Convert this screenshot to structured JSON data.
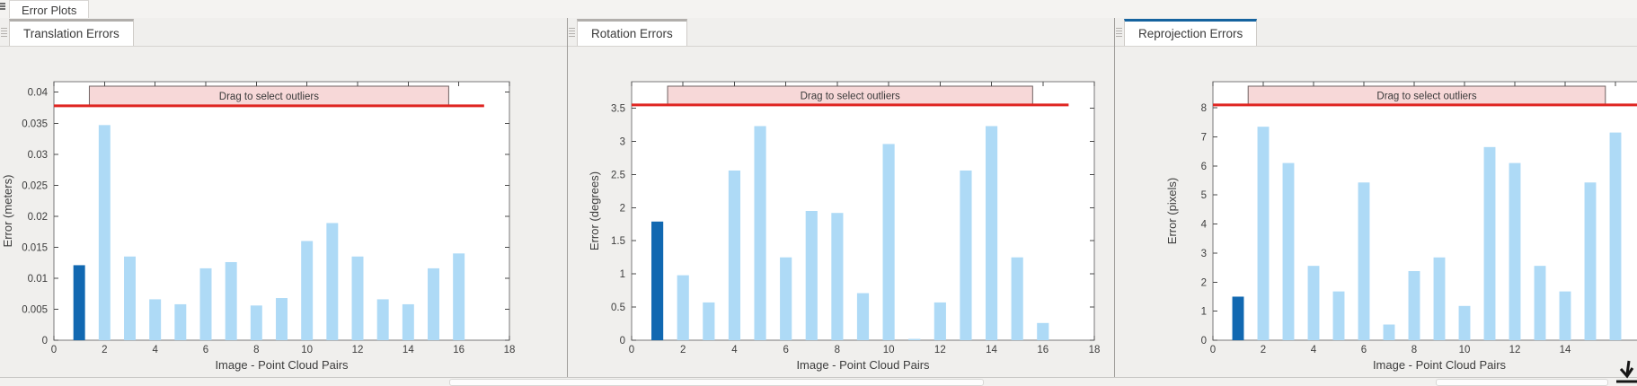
{
  "window": {
    "top_tab_label": "Error Plots",
    "bottom_scrollbar": true
  },
  "panels": [
    {
      "tab": "Translation Errors",
      "active": false
    },
    {
      "tab": "Rotation Errors",
      "active": false
    },
    {
      "tab": "Reprojection Errors",
      "active": true
    }
  ],
  "chart_data": [
    {
      "type": "bar",
      "title": "Translation Errors",
      "xlabel": "Image - Point Cloud Pairs",
      "ylabel": "Error (meters)",
      "x": [
        1,
        2,
        3,
        4,
        5,
        6,
        7,
        8,
        9,
        10,
        11,
        12,
        13,
        14,
        15,
        16
      ],
      "values": [
        0.0121,
        0.0347,
        0.0135,
        0.0066,
        0.0058,
        0.0116,
        0.0126,
        0.0056,
        0.0068,
        0.016,
        0.0189,
        0.0135,
        0.0066,
        0.0058,
        0.0116,
        0.014
      ],
      "selected_index": 0,
      "xlim": [
        0,
        18
      ],
      "ylim": [
        0,
        0.0417
      ],
      "xticks": [
        0,
        2,
        4,
        6,
        8,
        10,
        12,
        14,
        16,
        18
      ],
      "xtick_labels": [
        "0",
        "2",
        "4",
        "6",
        "8",
        "10",
        "12",
        "14",
        "16",
        "18"
      ],
      "yticks": [
        0,
        0.005,
        0.01,
        0.015,
        0.02,
        0.025,
        0.03,
        0.035,
        0.04
      ],
      "ytick_labels": [
        "0",
        "0.005",
        "0.01",
        "0.015",
        "0.02",
        "0.025",
        "0.03",
        "0.035",
        "0.04"
      ],
      "threshold_line": {
        "value": 0.0378,
        "x0": 0,
        "x1": 17
      },
      "outlier_box": {
        "x0": 1.4,
        "x1": 15.6,
        "label": "Drag to select outliers"
      },
      "grid": false,
      "legend": "none"
    },
    {
      "type": "bar",
      "title": "Rotation Errors",
      "xlabel": "Image - Point Cloud Pairs",
      "ylabel": "Error (degrees)",
      "x": [
        1,
        2,
        3,
        4,
        5,
        6,
        7,
        8,
        9,
        10,
        11,
        12,
        13,
        14,
        15,
        16
      ],
      "values": [
        1.79,
        0.98,
        0.57,
        2.56,
        3.23,
        1.25,
        1.95,
        1.92,
        0.71,
        2.96,
        0.02,
        0.57,
        2.56,
        3.23,
        1.25,
        0.26
      ],
      "selected_index": 0,
      "xlim": [
        0,
        18
      ],
      "ylim": [
        0,
        3.9
      ],
      "xticks": [
        0,
        2,
        4,
        6,
        8,
        10,
        12,
        14,
        16,
        18
      ],
      "xtick_labels": [
        "0",
        "2",
        "4",
        "6",
        "8",
        "10",
        "12",
        "14",
        "16",
        "18"
      ],
      "yticks": [
        0,
        0.5,
        1,
        1.5,
        2,
        2.5,
        3,
        3.5
      ],
      "ytick_labels": [
        "0",
        "0.5",
        "1",
        "1.5",
        "2",
        "2.5",
        "3",
        "3.5"
      ],
      "threshold_line": {
        "value": 3.55,
        "x0": 0,
        "x1": 17
      },
      "outlier_box": {
        "x0": 1.4,
        "x1": 15.6,
        "label": "Drag to select outliers"
      },
      "grid": false,
      "legend": "none"
    },
    {
      "type": "bar",
      "title": "Reprojection Errors",
      "xlabel": "Image - Point Cloud Pairs",
      "ylabel": "Error (pixels)",
      "x": [
        1,
        2,
        3,
        4,
        5,
        6,
        7,
        8,
        9,
        10,
        11,
        12,
        13,
        14,
        15,
        16
      ],
      "values": [
        1.5,
        7.35,
        6.1,
        2.56,
        1.68,
        5.43,
        0.54,
        2.38,
        2.85,
        1.18,
        6.65,
        6.1,
        2.56,
        1.68,
        5.43,
        7.15
      ],
      "selected_index": 0,
      "xlim": [
        0,
        18
      ],
      "ylim": [
        0,
        8.9
      ],
      "xticks": [
        0,
        2,
        4,
        6,
        8,
        10,
        12,
        14,
        16,
        18
      ],
      "xtick_labels": [
        "0",
        "2",
        "4",
        "6",
        "8",
        "10",
        "12",
        "14",
        "",
        ""
      ],
      "yticks": [
        0,
        1,
        2,
        3,
        4,
        5,
        6,
        7,
        8
      ],
      "ytick_labels": [
        "0",
        "1",
        "2",
        "3",
        "4",
        "5",
        "6",
        "7",
        "8"
      ],
      "threshold_line": {
        "value": 8.1,
        "x0": 0,
        "x1": 17
      },
      "outlier_box": {
        "x0": 1.4,
        "x1": 15.6,
        "label": "Drag to select outliers"
      },
      "grid": false,
      "legend": "none"
    }
  ],
  "colors": {
    "bar": "#aedaf6",
    "selected_bar": "#1168b1",
    "threshold_red": "#df2521",
    "outlier_box_fill": "#f7d8d8",
    "outlier_box_border": "#6f6262",
    "plot_background": "#ffffff",
    "plot_border": "#7a7a7a",
    "panel_background": "#f0efed",
    "active_tab_accent": "#15639f",
    "tick_text": "#3d3d3d"
  },
  "icons": {
    "window_grip": "grip-lines",
    "panel_grip": "grip-lines",
    "corner_cursor": "down-arrow-with-underline"
  }
}
